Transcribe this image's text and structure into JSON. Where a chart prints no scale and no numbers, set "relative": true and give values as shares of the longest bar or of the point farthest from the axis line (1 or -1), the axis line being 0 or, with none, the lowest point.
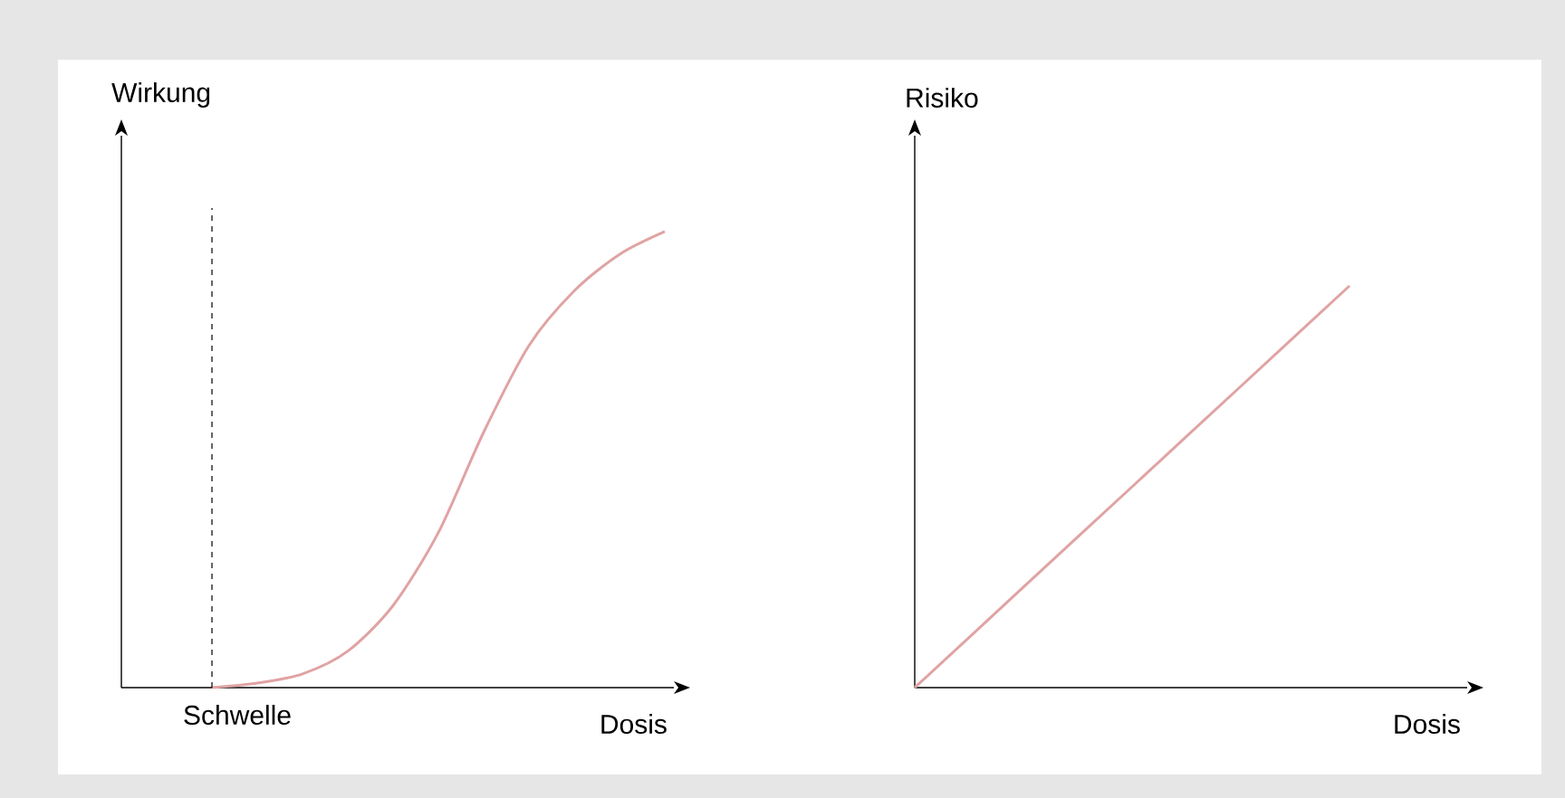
{
  "chart_data": [
    {
      "type": "line",
      "relative": true,
      "ylabel": "Wirkung",
      "xlabel": "Dosis",
      "color": "#e0a3a3",
      "categories": [
        null,
        null,
        null,
        null,
        null,
        null,
        null,
        null,
        null,
        null,
        null,
        null,
        null
      ],
      "values": [
        null,
        null,
        0,
        0.01,
        0.03,
        0.08,
        0.18,
        0.34,
        0.56,
        0.75,
        0.87,
        0.95,
        1
      ],
      "annotations": [
        "Schwelle"
      ]
    },
    {
      "type": "line",
      "relative": true,
      "ylabel": "Risiko",
      "xlabel": "Dosis",
      "color": "#e0a3a3",
      "categories": [
        null,
        null,
        null,
        null,
        null
      ],
      "values": [
        0,
        0.25,
        0.5,
        0.75,
        1
      ]
    }
  ]
}
